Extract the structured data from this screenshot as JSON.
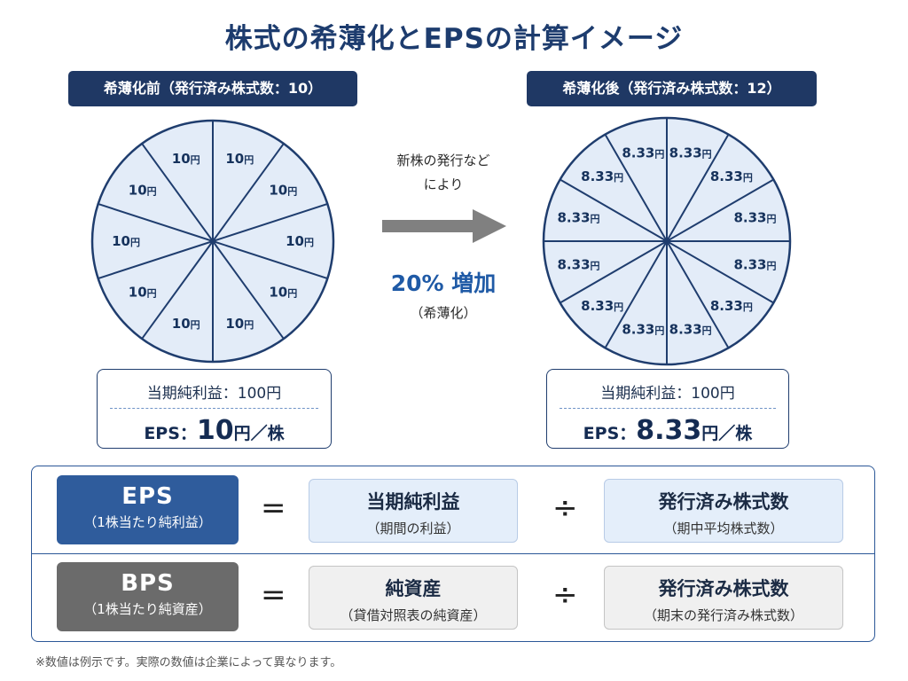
{
  "title": "株式の希薄化とEPSの計算イメージ",
  "before": {
    "label": "希薄化前（発行済み株式数：10）",
    "slice_count": 10,
    "slice_label": "10円",
    "net_profit": "当期純利益：100円",
    "eps_label": "EPS：",
    "eps_value": "10",
    "eps_unit": "円／株"
  },
  "after": {
    "label": "希薄化後（発行済み株式数：12）",
    "slice_count": 12,
    "slice_label": "8.33円",
    "net_profit": "当期純利益：100円",
    "eps_label": "EPS：",
    "eps_value": "8.33",
    "eps_unit": "円／株"
  },
  "arrow": {
    "line1": "新株の発行など",
    "line2": "により",
    "pct": "20% 増加",
    "sub": "（希薄化）"
  },
  "formulas": {
    "eps": {
      "name": "EPS",
      "name_sub": "（1株当たり純利益）",
      "eq": "=",
      "numerator": "当期純利益",
      "numerator_sub": "（期間の利益）",
      "op": "÷",
      "denominator": "発行済み株式数",
      "denominator_sub": "（期中平均株式数）"
    },
    "bps": {
      "name": "BPS",
      "name_sub": "（1株当たり純資産）",
      "eq": "=",
      "numerator": "純資産",
      "numerator_sub": "（貸借対照表の純資産）",
      "op": "÷",
      "denominator": "発行済み株式数",
      "denominator_sub": "（期末の発行済み株式数）"
    }
  },
  "footnote": "※数値は例示です。実際の数値は企業によって異なります。",
  "colors": {
    "navy": "#1f3864",
    "pie_fill": "#e3ecf8",
    "pie_stroke": "#1f3d6e",
    "eps_blue": "#2f5c9c",
    "bps_gray": "#6b6b6b",
    "light_blue_box": "#e4eefa",
    "light_gray_box": "#f0f0f0"
  }
}
